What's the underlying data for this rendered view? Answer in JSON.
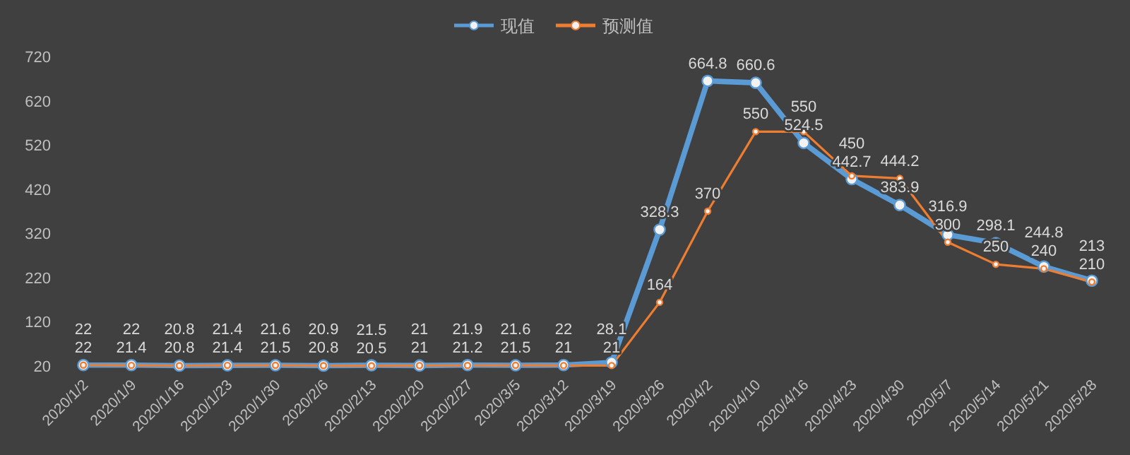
{
  "chart_data": {
    "type": "line",
    "categories": [
      "2020/1/2",
      "2020/1/9",
      "2020/1/16",
      "2020/1/23",
      "2020/1/30",
      "2020/2/6",
      "2020/2/13",
      "2020/2/20",
      "2020/2/27",
      "2020/3/5",
      "2020/3/12",
      "2020/3/19",
      "2020/3/26",
      "2020/4/2",
      "2020/4/10",
      "2020/4/16",
      "2020/4/23",
      "2020/4/30",
      "2020/5/7",
      "2020/5/14",
      "2020/5/21",
      "2020/5/28"
    ],
    "series": [
      {
        "name": "现值",
        "color": "#5b9bd5",
        "values": [
          22,
          22,
          20.8,
          21.4,
          21.6,
          20.9,
          21.5,
          21,
          21.9,
          21.6,
          22,
          28.1,
          328.3,
          664.8,
          660.6,
          524.5,
          442.7,
          383.9,
          316.9,
          298.1,
          244.8,
          213
        ]
      },
      {
        "name": "预测值",
        "color": "#ed7d31",
        "values": [
          22,
          21.4,
          20.8,
          21.4,
          21.5,
          20.8,
          20.5,
          21,
          21.2,
          21.5,
          21,
          21,
          164,
          370,
          550,
          550,
          450,
          444.2,
          300,
          250,
          240,
          210
        ]
      }
    ],
    "ylim": [
      20,
      720
    ],
    "yticks": [
      20,
      120,
      220,
      320,
      420,
      520,
      620,
      720
    ],
    "marker": "circle",
    "legend": "top",
    "data_labels": true,
    "grid": false
  }
}
